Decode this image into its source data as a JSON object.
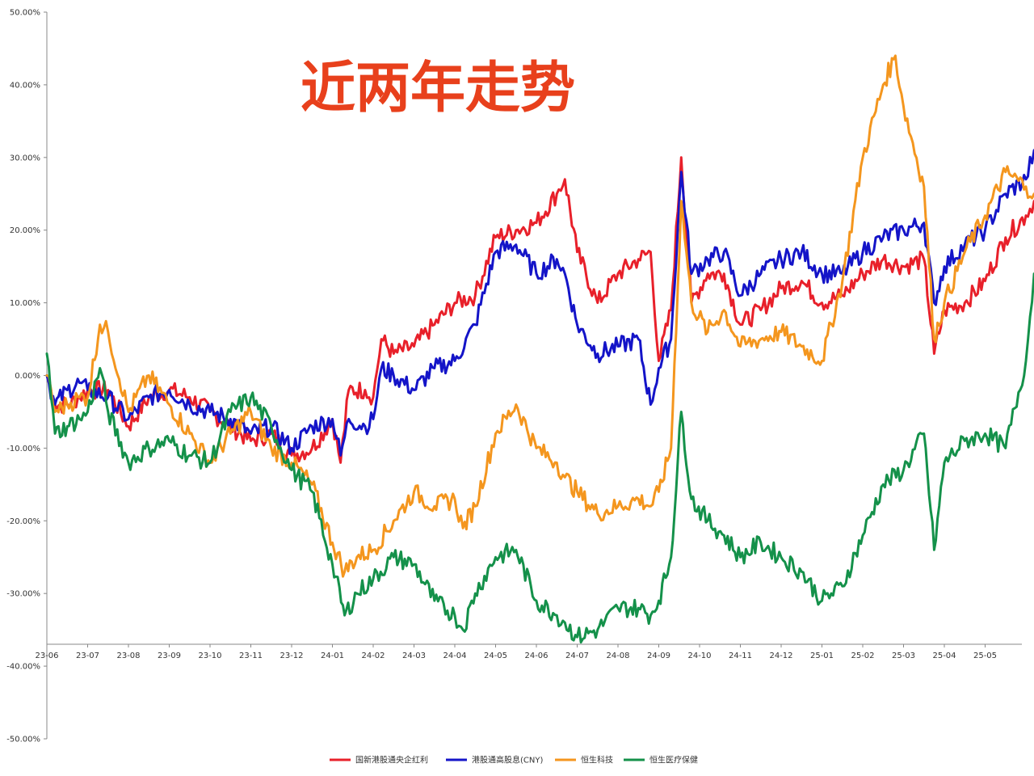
{
  "chart_data": {
    "type": "line",
    "title": "近两年走势",
    "y_ticks": [
      "50.00%",
      "40.00%",
      "30.00%",
      "20.00%",
      "10.00%",
      "0.00%",
      "-10.00%",
      "-20.00%",
      "-30.00%",
      "-40.00%",
      "-50.00%"
    ],
    "ylim": [
      -50,
      50
    ],
    "x_ticks": [
      "23-06",
      "23-07",
      "23-08",
      "23-09",
      "23-10",
      "23-11",
      "23-12",
      "24-01",
      "24-02",
      "24-03",
      "24-04",
      "24-05",
      "24-06",
      "24-07",
      "24-08",
      "24-09",
      "24-10",
      "24-11",
      "24-12",
      "25-01",
      "25-02",
      "25-03",
      "25-04",
      "25-05"
    ],
    "grid": false,
    "legend_position": "bottom",
    "series": [
      {
        "name": "国新港股通央企红利",
        "color": "#e8202a",
        "points": [
          [
            0,
            0
          ],
          [
            0.2,
            -4
          ],
          [
            0.5,
            -4
          ],
          [
            0.8,
            -3
          ],
          [
            1,
            -2
          ],
          [
            1.5,
            -2
          ],
          [
            2,
            -7
          ],
          [
            2.5,
            -3
          ],
          [
            3,
            -2
          ],
          [
            3.5,
            -3
          ],
          [
            4,
            -5
          ],
          [
            4.5,
            -7
          ],
          [
            5,
            -9
          ],
          [
            5.5,
            -8
          ],
          [
            6,
            -11
          ],
          [
            6.5,
            -10
          ],
          [
            7,
            -6
          ],
          [
            7.2,
            -12
          ],
          [
            7.4,
            -2
          ],
          [
            7.8,
            -2
          ],
          [
            8,
            -3
          ],
          [
            8.2,
            5
          ],
          [
            8.5,
            3
          ],
          [
            9,
            4
          ],
          [
            9.5,
            7
          ],
          [
            10,
            10
          ],
          [
            10.5,
            11
          ],
          [
            11,
            19
          ],
          [
            11.5,
            20
          ],
          [
            12,
            21
          ],
          [
            12.5,
            25
          ],
          [
            12.7,
            27
          ],
          [
            13,
            17
          ],
          [
            13.5,
            10
          ],
          [
            14,
            14
          ],
          [
            14.5,
            16
          ],
          [
            14.8,
            17
          ],
          [
            15,
            2
          ],
          [
            15.3,
            9
          ],
          [
            15.55,
            30
          ],
          [
            15.8,
            10
          ],
          [
            16.2,
            14
          ],
          [
            16.6,
            14
          ],
          [
            17,
            7
          ],
          [
            17.5,
            9
          ],
          [
            18,
            12
          ],
          [
            18.5,
            13
          ],
          [
            19,
            10
          ],
          [
            19.5,
            11
          ],
          [
            20,
            14
          ],
          [
            20.5,
            16
          ],
          [
            21,
            15
          ],
          [
            21.5,
            16
          ],
          [
            21.75,
            3
          ],
          [
            22,
            9
          ],
          [
            22.5,
            10
          ],
          [
            23,
            13
          ],
          [
            23.5,
            19
          ],
          [
            24,
            22
          ],
          [
            24.2,
            24
          ]
        ]
      },
      {
        "name": "港股通高股息(CNY)",
        "color": "#1414c8",
        "points": [
          [
            0,
            0
          ],
          [
            0.2,
            -4
          ],
          [
            0.5,
            -2
          ],
          [
            0.8,
            -1
          ],
          [
            1,
            -2
          ],
          [
            1.5,
            -3
          ],
          [
            2,
            -6
          ],
          [
            2.5,
            -3
          ],
          [
            3,
            -2
          ],
          [
            3.5,
            -4
          ],
          [
            4,
            -5
          ],
          [
            4.5,
            -6
          ],
          [
            5,
            -8
          ],
          [
            5.5,
            -7
          ],
          [
            6,
            -10
          ],
          [
            6.5,
            -7
          ],
          [
            7,
            -6
          ],
          [
            7.2,
            -11
          ],
          [
            7.4,
            -6
          ],
          [
            7.8,
            -7
          ],
          [
            8,
            -6
          ],
          [
            8.2,
            1
          ],
          [
            8.5,
            0
          ],
          [
            9,
            -2
          ],
          [
            9.5,
            1
          ],
          [
            10,
            2
          ],
          [
            10.5,
            7
          ],
          [
            11,
            17
          ],
          [
            11.5,
            18
          ],
          [
            12,
            14
          ],
          [
            12.5,
            16
          ],
          [
            12.7,
            14
          ],
          [
            13,
            7
          ],
          [
            13.5,
            3
          ],
          [
            14,
            4
          ],
          [
            14.5,
            5
          ],
          [
            14.8,
            -4
          ],
          [
            15,
            1
          ],
          [
            15.3,
            5
          ],
          [
            15.55,
            28
          ],
          [
            15.8,
            14
          ],
          [
            16.2,
            16
          ],
          [
            16.6,
            17
          ],
          [
            17,
            11
          ],
          [
            17.5,
            14
          ],
          [
            18,
            16
          ],
          [
            18.5,
            17
          ],
          [
            19,
            14
          ],
          [
            19.5,
            14
          ],
          [
            20,
            17
          ],
          [
            20.5,
            19
          ],
          [
            21,
            20
          ],
          [
            21.5,
            21
          ],
          [
            21.75,
            10
          ],
          [
            22,
            15
          ],
          [
            22.5,
            18
          ],
          [
            23,
            20
          ],
          [
            23.5,
            25
          ],
          [
            24,
            27
          ],
          [
            24.2,
            31
          ]
        ]
      },
      {
        "name": "恒生科技",
        "color": "#f4961e",
        "points": [
          [
            0,
            0
          ],
          [
            0.2,
            -5
          ],
          [
            0.5,
            -4
          ],
          [
            0.8,
            -3
          ],
          [
            1,
            -3
          ],
          [
            1.3,
            7
          ],
          [
            1.5,
            6
          ],
          [
            2,
            -5
          ],
          [
            2.5,
            0
          ],
          [
            3,
            -4
          ],
          [
            3.5,
            -8
          ],
          [
            4,
            -12
          ],
          [
            4.5,
            -8
          ],
          [
            5,
            -5
          ],
          [
            5.5,
            -10
          ],
          [
            6,
            -12
          ],
          [
            6.5,
            -15
          ],
          [
            7,
            -23
          ],
          [
            7.3,
            -27
          ],
          [
            7.6,
            -25
          ],
          [
            8,
            -24
          ],
          [
            8.5,
            -20
          ],
          [
            9,
            -16
          ],
          [
            9.5,
            -18
          ],
          [
            10,
            -17
          ],
          [
            10.2,
            -21
          ],
          [
            10.5,
            -18
          ],
          [
            11,
            -8
          ],
          [
            11.5,
            -4
          ],
          [
            12,
            -10
          ],
          [
            12.5,
            -12
          ],
          [
            12.7,
            -14
          ],
          [
            13,
            -16
          ],
          [
            13.5,
            -19
          ],
          [
            14,
            -18
          ],
          [
            14.5,
            -17
          ],
          [
            14.8,
            -18
          ],
          [
            15,
            -16
          ],
          [
            15.3,
            -10
          ],
          [
            15.55,
            24
          ],
          [
            15.8,
            10
          ],
          [
            16.2,
            6
          ],
          [
            16.6,
            9
          ],
          [
            17,
            4
          ],
          [
            17.5,
            5
          ],
          [
            18,
            6
          ],
          [
            18.5,
            4
          ],
          [
            19,
            2
          ],
          [
            19.5,
            13
          ],
          [
            20,
            30
          ],
          [
            20.5,
            40
          ],
          [
            20.8,
            44
          ],
          [
            21,
            37
          ],
          [
            21.5,
            26
          ],
          [
            21.75,
            5
          ],
          [
            22,
            10
          ],
          [
            22.5,
            17
          ],
          [
            23,
            22
          ],
          [
            23.5,
            28
          ],
          [
            24,
            26
          ],
          [
            24.2,
            25
          ]
        ]
      },
      {
        "name": "恒生医疗保健",
        "color": "#14914a",
        "points": [
          [
            0,
            3
          ],
          [
            0.2,
            -8
          ],
          [
            0.5,
            -7
          ],
          [
            0.8,
            -6
          ],
          [
            1,
            -5
          ],
          [
            1.3,
            1
          ],
          [
            1.5,
            -5
          ],
          [
            2,
            -12
          ],
          [
            2.5,
            -10
          ],
          [
            3,
            -9
          ],
          [
            3.5,
            -11
          ],
          [
            4,
            -12
          ],
          [
            4.5,
            -5
          ],
          [
            5,
            -3
          ],
          [
            5.5,
            -7
          ],
          [
            6,
            -13
          ],
          [
            6.5,
            -16
          ],
          [
            7,
            -26
          ],
          [
            7.3,
            -33
          ],
          [
            7.6,
            -30
          ],
          [
            8,
            -28
          ],
          [
            8.5,
            -25
          ],
          [
            9,
            -26
          ],
          [
            9.5,
            -31
          ],
          [
            10,
            -33
          ],
          [
            10.2,
            -35
          ],
          [
            10.5,
            -30
          ],
          [
            11,
            -25
          ],
          [
            11.5,
            -24
          ],
          [
            12,
            -31
          ],
          [
            12.5,
            -33
          ],
          [
            12.7,
            -34
          ],
          [
            13,
            -36
          ],
          [
            13.5,
            -35
          ],
          [
            14,
            -32
          ],
          [
            14.5,
            -32
          ],
          [
            14.8,
            -33
          ],
          [
            15,
            -31
          ],
          [
            15.3,
            -25
          ],
          [
            15.55,
            -5
          ],
          [
            15.8,
            -17
          ],
          [
            16.2,
            -20
          ],
          [
            16.6,
            -22
          ],
          [
            17,
            -25
          ],
          [
            17.5,
            -23
          ],
          [
            18,
            -25
          ],
          [
            18.5,
            -27
          ],
          [
            19,
            -31
          ],
          [
            19.5,
            -29
          ],
          [
            20,
            -22
          ],
          [
            20.5,
            -15
          ],
          [
            21,
            -13
          ],
          [
            21.5,
            -8
          ],
          [
            21.75,
            -24
          ],
          [
            22,
            -12
          ],
          [
            22.5,
            -9
          ],
          [
            23,
            -8
          ],
          [
            23.5,
            -10
          ],
          [
            24,
            2
          ],
          [
            24.2,
            14
          ]
        ]
      }
    ]
  }
}
